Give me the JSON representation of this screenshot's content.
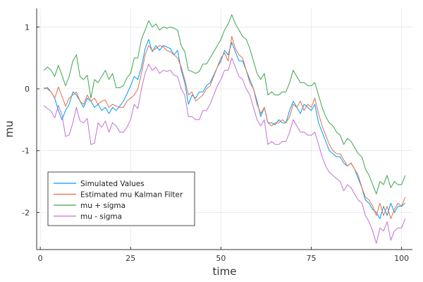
{
  "chart_data": {
    "type": "line",
    "title": "",
    "xlabel": "time",
    "ylabel": "mu",
    "xlim": [
      -1,
      103
    ],
    "ylim": [
      -2.6,
      1.3
    ],
    "xticks": [
      0,
      25,
      50,
      75,
      100
    ],
    "yticks": [
      -2,
      -1,
      0,
      1
    ],
    "xtick_labels": [
      "0",
      "25",
      "50",
      "75",
      "100"
    ],
    "ytick_labels": [
      "-2",
      "-1",
      "0",
      "1"
    ],
    "grid": true,
    "legend_position": "bottom-left",
    "x": [
      1,
      2,
      3,
      4,
      5,
      6,
      7,
      8,
      9,
      10,
      11,
      12,
      13,
      14,
      15,
      16,
      17,
      18,
      19,
      20,
      21,
      22,
      23,
      24,
      25,
      26,
      27,
      28,
      29,
      30,
      31,
      32,
      33,
      34,
      35,
      36,
      37,
      38,
      39,
      40,
      41,
      42,
      43,
      44,
      45,
      46,
      47,
      48,
      49,
      50,
      51,
      52,
      53,
      54,
      55,
      56,
      57,
      58,
      59,
      60,
      61,
      62,
      63,
      64,
      65,
      66,
      67,
      68,
      69,
      70,
      71,
      72,
      73,
      74,
      75,
      76,
      77,
      78,
      79,
      80,
      81,
      82,
      83,
      84,
      85,
      86,
      87,
      88,
      89,
      90,
      91,
      92,
      93,
      94,
      95,
      96,
      97,
      98,
      99,
      100,
      101
    ],
    "series": [
      {
        "name": "Simulated Values",
        "color": "#009af9",
        "values": [
          0.0,
          0.02,
          -0.05,
          -0.15,
          -0.35,
          -0.5,
          -0.35,
          -0.25,
          -0.05,
          -0.1,
          -0.2,
          -0.3,
          -0.15,
          -0.2,
          -0.3,
          -0.25,
          -0.35,
          -0.3,
          -0.4,
          -0.3,
          -0.35,
          -0.28,
          -0.2,
          -0.08,
          0.05,
          0.2,
          0.15,
          0.35,
          0.65,
          0.8,
          0.6,
          0.7,
          0.62,
          0.7,
          0.68,
          0.65,
          0.55,
          0.62,
          0.3,
          0.1,
          -0.25,
          -0.1,
          -0.15,
          -0.05,
          -0.05,
          0.05,
          0.1,
          0.22,
          0.35,
          0.45,
          0.62,
          0.55,
          0.75,
          0.6,
          0.45,
          0.45,
          0.3,
          0.15,
          0.0,
          -0.2,
          -0.45,
          -0.3,
          -0.55,
          -0.55,
          -0.58,
          -0.5,
          -0.55,
          -0.55,
          -0.35,
          -0.2,
          -0.3,
          -0.4,
          -0.25,
          -0.3,
          -0.35,
          -0.25,
          -0.55,
          -0.7,
          -0.85,
          -1.0,
          -1.05,
          -1.1,
          -1.1,
          -1.2,
          -1.25,
          -1.2,
          -1.3,
          -1.45,
          -1.6,
          -1.8,
          -1.85,
          -1.95,
          -2.0,
          -2.1,
          -1.9,
          -2.05,
          -1.85,
          -2.0,
          -1.9,
          -1.9,
          -1.85
        ]
      },
      {
        "name": "Estimated mu Kalman Filter",
        "color": "#e26f46",
        "values": [
          0.02,
          0.0,
          -0.05,
          -0.15,
          0.03,
          -0.12,
          -0.28,
          -0.15,
          -0.1,
          -0.05,
          -0.2,
          -0.25,
          -0.1,
          -0.2,
          -0.15,
          -0.25,
          -0.2,
          -0.18,
          -0.3,
          -0.25,
          -0.28,
          -0.3,
          -0.3,
          -0.2,
          -0.15,
          -0.1,
          0.0,
          0.25,
          0.55,
          0.7,
          0.62,
          0.65,
          0.7,
          0.68,
          0.62,
          0.6,
          0.55,
          0.5,
          0.35,
          0.15,
          -0.1,
          -0.05,
          -0.2,
          -0.15,
          -0.1,
          0.0,
          0.05,
          0.2,
          0.35,
          0.5,
          0.58,
          0.45,
          0.85,
          0.65,
          0.55,
          0.5,
          0.3,
          0.1,
          0.0,
          -0.25,
          -0.4,
          -0.3,
          -0.55,
          -0.6,
          -0.55,
          -0.55,
          -0.5,
          -0.55,
          -0.45,
          -0.25,
          -0.3,
          -0.2,
          -0.35,
          -0.25,
          -0.3,
          -0.15,
          -0.4,
          -0.6,
          -0.75,
          -0.9,
          -1.0,
          -1.05,
          -1.05,
          -1.15,
          -1.25,
          -1.2,
          -1.3,
          -1.4,
          -1.6,
          -1.75,
          -1.8,
          -1.9,
          -2.05,
          -1.85,
          -2.05,
          -1.9,
          -2.1,
          -1.95,
          -1.85,
          -1.9,
          -1.75
        ]
      },
      {
        "name": "mu + sigma",
        "color": "#3da44d",
        "values": [
          0.3,
          0.35,
          0.3,
          0.2,
          0.38,
          0.22,
          0.05,
          0.2,
          0.45,
          0.55,
          0.2,
          0.15,
          0.22,
          -0.15,
          0.15,
          0.1,
          0.2,
          0.3,
          0.15,
          0.25,
          0.02,
          0.02,
          0.05,
          0.18,
          0.25,
          0.5,
          0.5,
          0.8,
          0.95,
          1.1,
          1.0,
          1.05,
          0.95,
          1.0,
          0.98,
          1.0,
          0.98,
          0.95,
          0.7,
          0.6,
          0.3,
          0.28,
          0.25,
          0.28,
          0.4,
          0.4,
          0.5,
          0.6,
          0.7,
          0.8,
          0.95,
          1.05,
          1.2,
          1.05,
          0.95,
          0.85,
          0.8,
          0.65,
          0.45,
          0.25,
          0.15,
          0.25,
          -0.1,
          -0.05,
          -0.1,
          -0.1,
          -0.05,
          -0.05,
          0.1,
          0.3,
          0.2,
          0.1,
          0.1,
          0.05,
          0.05,
          0.1,
          -0.1,
          -0.3,
          -0.45,
          -0.55,
          -0.6,
          -0.7,
          -0.75,
          -0.9,
          -0.8,
          -0.85,
          -0.95,
          -1.05,
          -1.1,
          -1.3,
          -1.4,
          -1.55,
          -1.7,
          -1.5,
          -1.55,
          -1.4,
          -1.6,
          -1.5,
          -1.55,
          -1.55,
          -1.4
        ]
      },
      {
        "name": "mu - sigma",
        "color": "#c271d2",
        "values": [
          -0.27,
          -0.32,
          -0.36,
          -0.47,
          -0.27,
          -0.42,
          -0.77,
          -0.75,
          -0.55,
          -0.3,
          -0.52,
          -0.55,
          -0.48,
          -0.9,
          -0.88,
          -0.55,
          -0.62,
          -0.52,
          -0.7,
          -0.55,
          -0.6,
          -0.7,
          -0.7,
          -0.62,
          -0.5,
          -0.25,
          -0.32,
          0.0,
          0.25,
          0.4,
          0.3,
          0.35,
          0.25,
          0.3,
          0.28,
          0.3,
          0.22,
          0.2,
          0.0,
          -0.1,
          -0.45,
          -0.45,
          -0.5,
          -0.5,
          -0.35,
          -0.35,
          -0.25,
          -0.1,
          0.05,
          0.15,
          0.3,
          0.3,
          0.5,
          0.35,
          0.2,
          0.15,
          0.0,
          -0.1,
          -0.3,
          -0.5,
          -0.6,
          -0.5,
          -0.9,
          -0.85,
          -0.9,
          -0.9,
          -0.85,
          -0.85,
          -0.7,
          -0.5,
          -0.6,
          -0.7,
          -0.7,
          -0.75,
          -0.75,
          -0.7,
          -0.9,
          -1.1,
          -1.25,
          -1.35,
          -1.4,
          -1.45,
          -1.5,
          -1.65,
          -1.55,
          -1.6,
          -1.7,
          -1.8,
          -1.85,
          -2.05,
          -2.15,
          -2.3,
          -2.5,
          -2.25,
          -2.3,
          -2.15,
          -2.45,
          -2.3,
          -2.25,
          -2.25,
          -2.1
        ]
      }
    ]
  }
}
